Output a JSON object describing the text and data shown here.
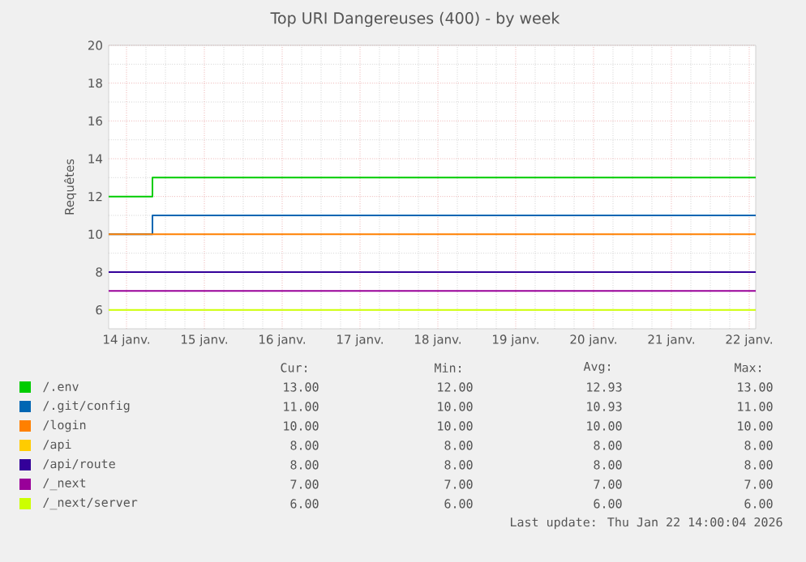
{
  "chart_data": {
    "type": "step",
    "title": "Top URI Dangereuses (400) - by week",
    "ylabel": "Requêtes",
    "x": [
      "2026-01-13T18:30",
      "2026-01-14T08:00",
      "2026-01-22T02:00"
    ],
    "xlim": [
      "2026-01-13T18:30",
      "2026-01-22T02:00"
    ],
    "xticks": [
      {
        "value": "2026-01-14",
        "label": "14 janv."
      },
      {
        "value": "2026-01-15",
        "label": "15 janv."
      },
      {
        "value": "2026-01-16",
        "label": "16 janv."
      },
      {
        "value": "2026-01-17",
        "label": "17 janv."
      },
      {
        "value": "2026-01-18",
        "label": "18 janv."
      },
      {
        "value": "2026-01-19",
        "label": "19 janv."
      },
      {
        "value": "2026-01-20",
        "label": "20 janv."
      },
      {
        "value": "2026-01-21",
        "label": "21 janv."
      },
      {
        "value": "2026-01-22",
        "label": "22 janv."
      }
    ],
    "ylim": [
      5,
      20
    ],
    "yticks": [
      6,
      8,
      10,
      12,
      14,
      16,
      18,
      20
    ],
    "grid": true,
    "legend": "bottom",
    "series": [
      {
        "name": "/.env",
        "color": "#00cc00",
        "values": [
          12,
          13,
          13
        ]
      },
      {
        "name": "/.git/config",
        "color": "#0066b3",
        "values": [
          10,
          11,
          11
        ]
      },
      {
        "name": "/login",
        "color": "#ff8000",
        "values": [
          10,
          10,
          10
        ]
      },
      {
        "name": "/api",
        "color": "#ffcc00",
        "values": [
          null,
          null,
          null
        ]
      },
      {
        "name": "/api/route",
        "color": "#330099",
        "values": [
          8,
          8,
          8
        ]
      },
      {
        "name": "/_next",
        "color": "#990099",
        "values": [
          7,
          7,
          7
        ]
      },
      {
        "name": "/_next/server",
        "color": "#ccff00",
        "values": [
          6,
          6,
          6
        ]
      }
    ],
    "annotations": [
      "Cur:",
      "Min:",
      "Avg:",
      "Max:",
      "13.00",
      "12.00",
      "12.93",
      "13.00",
      "11.00",
      "10.00",
      "10.93",
      "11.00",
      "10.00",
      "10.00",
      "10.00",
      "10.00",
      "8.00",
      "8.00",
      "8.00",
      "8.00",
      "8.00",
      "8.00",
      "8.00",
      "8.00",
      "7.00",
      "7.00",
      "7.00",
      "7.00",
      "6.00",
      "6.00",
      "6.00",
      "6.00",
      "Last update: Thu Jan 22 14:00:04 2026"
    ]
  }
}
